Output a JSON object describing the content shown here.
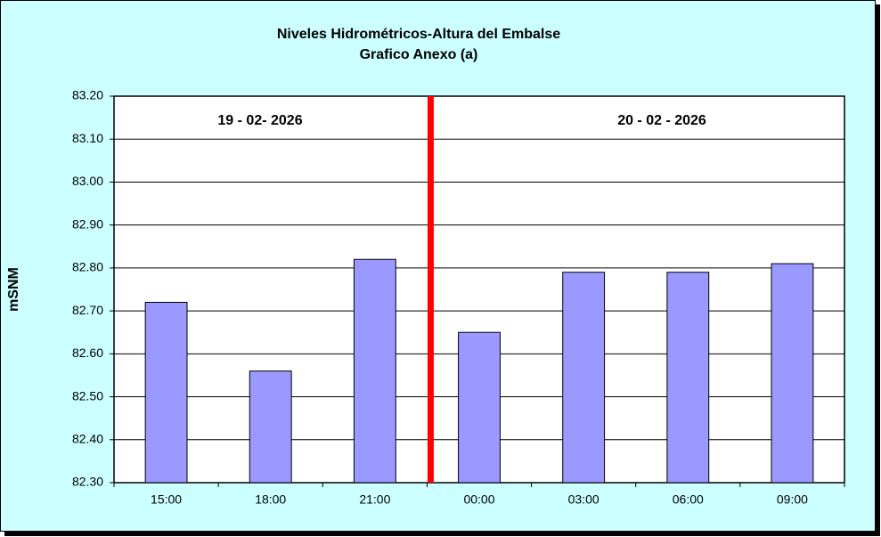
{
  "chart_data": {
    "type": "bar",
    "title": "Niveles Hidrométricos-Altura del Embalse",
    "subtitle": "Grafico Anexo (a)",
    "y_label": "mSNM",
    "annotations": [
      "19 - 02- 2026",
      "20 - 02 - 2026"
    ],
    "categories": [
      "15:00",
      "18:00",
      "21:00",
      "00:00",
      "03:00",
      "06:00",
      "09:00"
    ],
    "values": [
      82.72,
      82.56,
      82.82,
      82.65,
      82.79,
      82.79,
      82.81
    ],
    "color": "#9999ff",
    "ylim": [
      82.3,
      83.2
    ],
    "yticks": [
      {
        "value": 82.3,
        "label": "82.30"
      },
      {
        "value": 82.4,
        "label": "82.40"
      },
      {
        "value": 82.5,
        "label": "82.50"
      },
      {
        "value": 82.6,
        "label": "82.60"
      },
      {
        "value": 82.7,
        "label": "82.70"
      },
      {
        "value": 82.8,
        "label": "82.80"
      },
      {
        "value": 82.9,
        "label": "82.90"
      },
      {
        "value": 83.0,
        "label": "83.00"
      },
      {
        "value": 83.1,
        "label": "83.10"
      },
      {
        "value": 83.2,
        "label": "83.20"
      }
    ],
    "grid": true
  }
}
